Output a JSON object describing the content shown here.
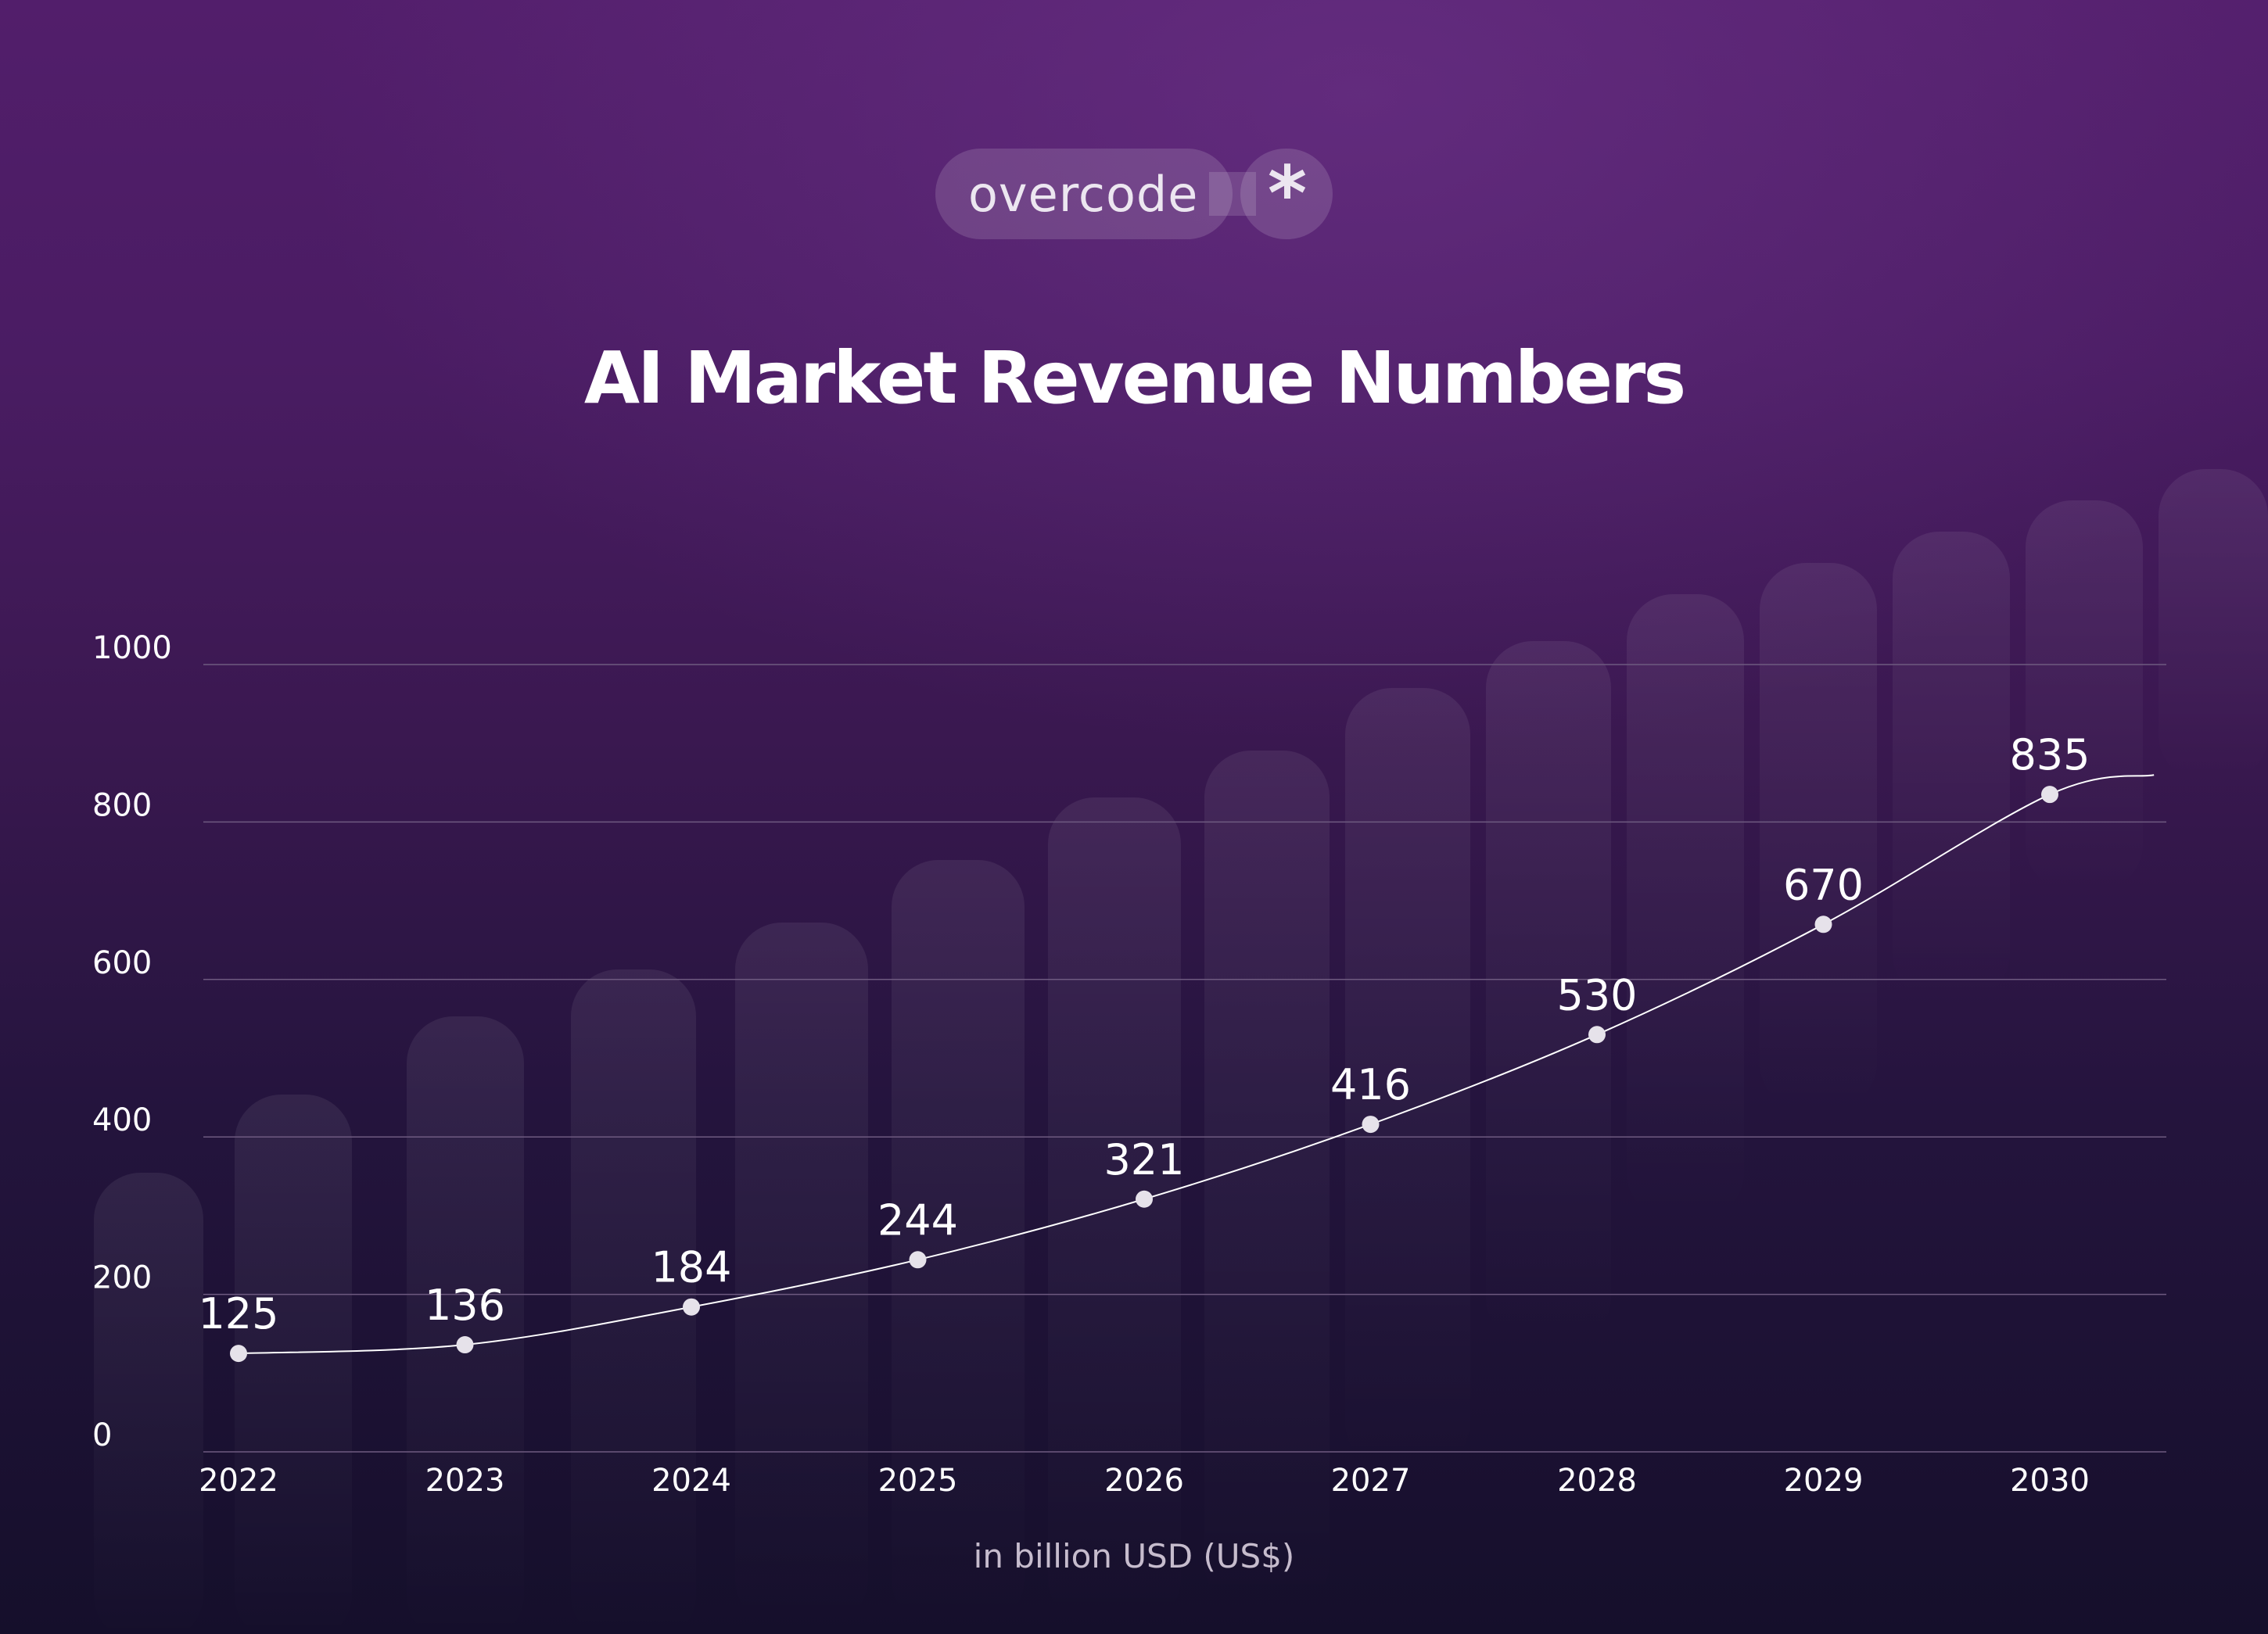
{
  "brand": {
    "name": "overcode",
    "icon": "asterisk-icon"
  },
  "colors": {
    "line": "#ffffff",
    "point": "#e6e2ea",
    "grid": "#6e5a80"
  },
  "chart_data": {
    "type": "line",
    "title": "AI Market Revenue Numbers",
    "unit_label": "in billion USD (US$)",
    "xlabel": "",
    "ylabel": "",
    "categories": [
      "2022",
      "2023",
      "2024",
      "2025",
      "2026",
      "2027",
      "2028",
      "2029",
      "2030"
    ],
    "series": [
      {
        "values": [
          125,
          136,
          184,
          244,
          321,
          416,
          530,
          670,
          835
        ]
      }
    ],
    "y_ticks": [
      0,
      200,
      400,
      600,
      800,
      1000
    ],
    "ylim": [
      0,
      1000
    ],
    "grid": true,
    "legend": "none"
  }
}
